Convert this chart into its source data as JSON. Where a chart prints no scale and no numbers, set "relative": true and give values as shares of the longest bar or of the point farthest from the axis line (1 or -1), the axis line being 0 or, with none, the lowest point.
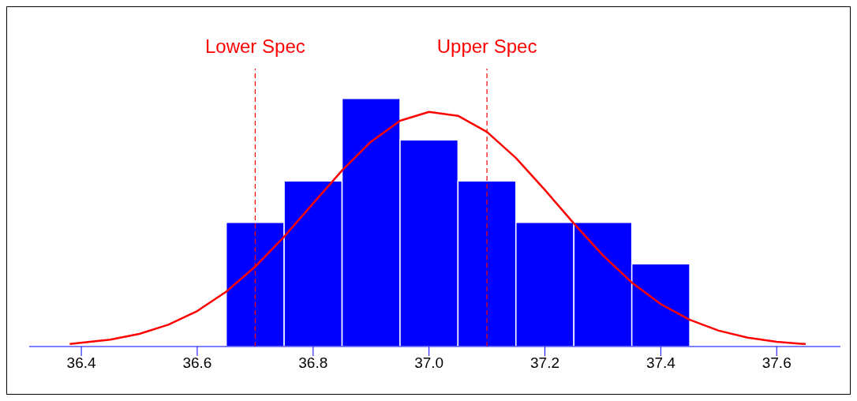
{
  "chart_data": {
    "type": "histogram",
    "relative": true,
    "tick_labels": "x",
    "bins": [
      36.65,
      36.75,
      36.85,
      36.95,
      37.05,
      37.15,
      37.25,
      37.35,
      37.45
    ],
    "values": [
      0.5,
      0.667,
      1,
      0.833,
      0.667,
      0.5,
      0.5,
      0.333
    ],
    "color": "#0000ff",
    "series": [
      {
        "type": "line",
        "color": "#ff0000",
        "x": [
          36.38,
          36.45,
          36.5,
          36.55,
          36.6,
          36.65,
          36.7,
          36.75,
          36.8,
          36.85,
          36.9,
          36.95,
          37.0,
          37.05,
          37.1,
          37.15,
          37.2,
          37.25,
          37.3,
          37.35,
          37.4,
          37.45,
          37.5,
          37.55,
          37.6,
          37.65
        ],
        "values": [
          0.01,
          0.028,
          0.051,
          0.088,
          0.143,
          0.221,
          0.322,
          0.443,
          0.577,
          0.71,
          0.826,
          0.91,
          0.946,
          0.93,
          0.865,
          0.76,
          0.631,
          0.496,
          0.368,
          0.258,
          0.171,
          0.108,
          0.064,
          0.036,
          0.019,
          0.01
        ]
      }
    ],
    "xlim": [
      36.31,
      37.71
    ],
    "xticks": [
      36.4,
      36.6,
      36.8,
      {
        "value": 37,
        "label": "37.0"
      },
      37.2,
      37.4,
      37.6
    ],
    "ref_lines": [
      {
        "axis": "x",
        "value": 36.7,
        "label": "Lower Spec",
        "color": "#ff0000",
        "line_style": "dashed"
      },
      {
        "axis": "x",
        "value": 37.1,
        "label": "Upper Spec",
        "color": "#ff0000",
        "line_style": "dashed"
      }
    ]
  }
}
